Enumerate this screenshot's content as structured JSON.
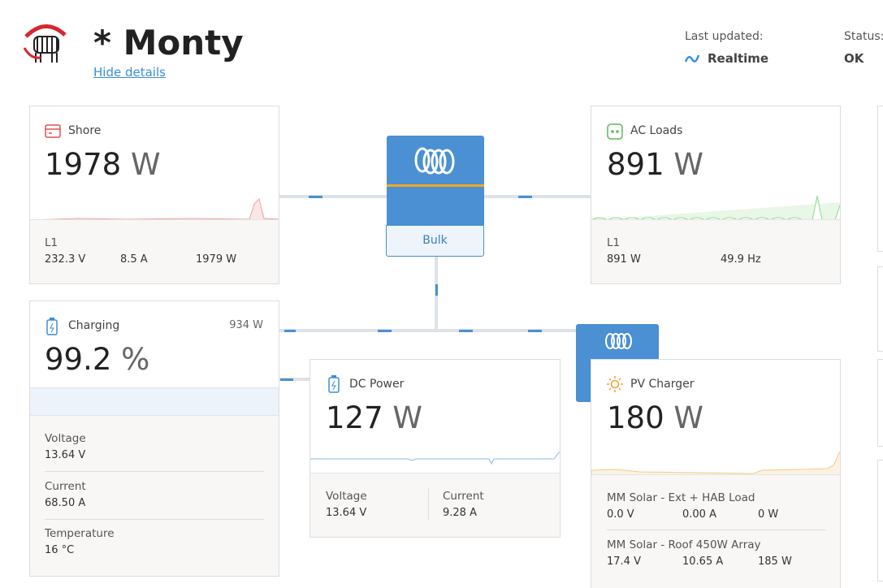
{
  "header": {
    "title": "* Monty",
    "hide_details": "Hide details",
    "last_updated_label": "Last updated:",
    "last_updated_value": "Realtime",
    "status_label": "Status:",
    "status_value": "OK"
  },
  "shore": {
    "title": "Shore",
    "value": "1978",
    "unit": "W",
    "phase": "L1",
    "stats": [
      "232.3 V",
      "8.5 A",
      "1979 W"
    ]
  },
  "inverter": {
    "state": "Bulk"
  },
  "ac_loads": {
    "title": "AC Loads",
    "value": "891",
    "unit": "W",
    "phase": "L1",
    "stats": [
      "891 W",
      "49.9 Hz"
    ]
  },
  "battery": {
    "title": "Charging",
    "power": "934 W",
    "value": "99.2",
    "unit": "%",
    "details": [
      {
        "label": "Voltage",
        "value": "13.64 V"
      },
      {
        "label": "Current",
        "value": "68.50 A"
      },
      {
        "label": "Temperature",
        "value": "16 °C"
      }
    ]
  },
  "dc_power": {
    "title": "DC Power",
    "value": "127",
    "unit": "W",
    "details": [
      {
        "label": "Voltage",
        "value": "13.64 V"
      },
      {
        "label": "Current",
        "value": "9.28 A"
      }
    ]
  },
  "pv_charger": {
    "title": "PV Charger",
    "value": "180",
    "unit": "W",
    "trackers": [
      {
        "name": "MM Solar - Ext + HAB Load",
        "stats": [
          "0.0 V",
          "0.00 A",
          "0 W"
        ]
      },
      {
        "name": "MM Solar - Roof 450W Array",
        "stats": [
          "17.4 V",
          "10.65 A",
          "185 W"
        ]
      }
    ]
  }
}
